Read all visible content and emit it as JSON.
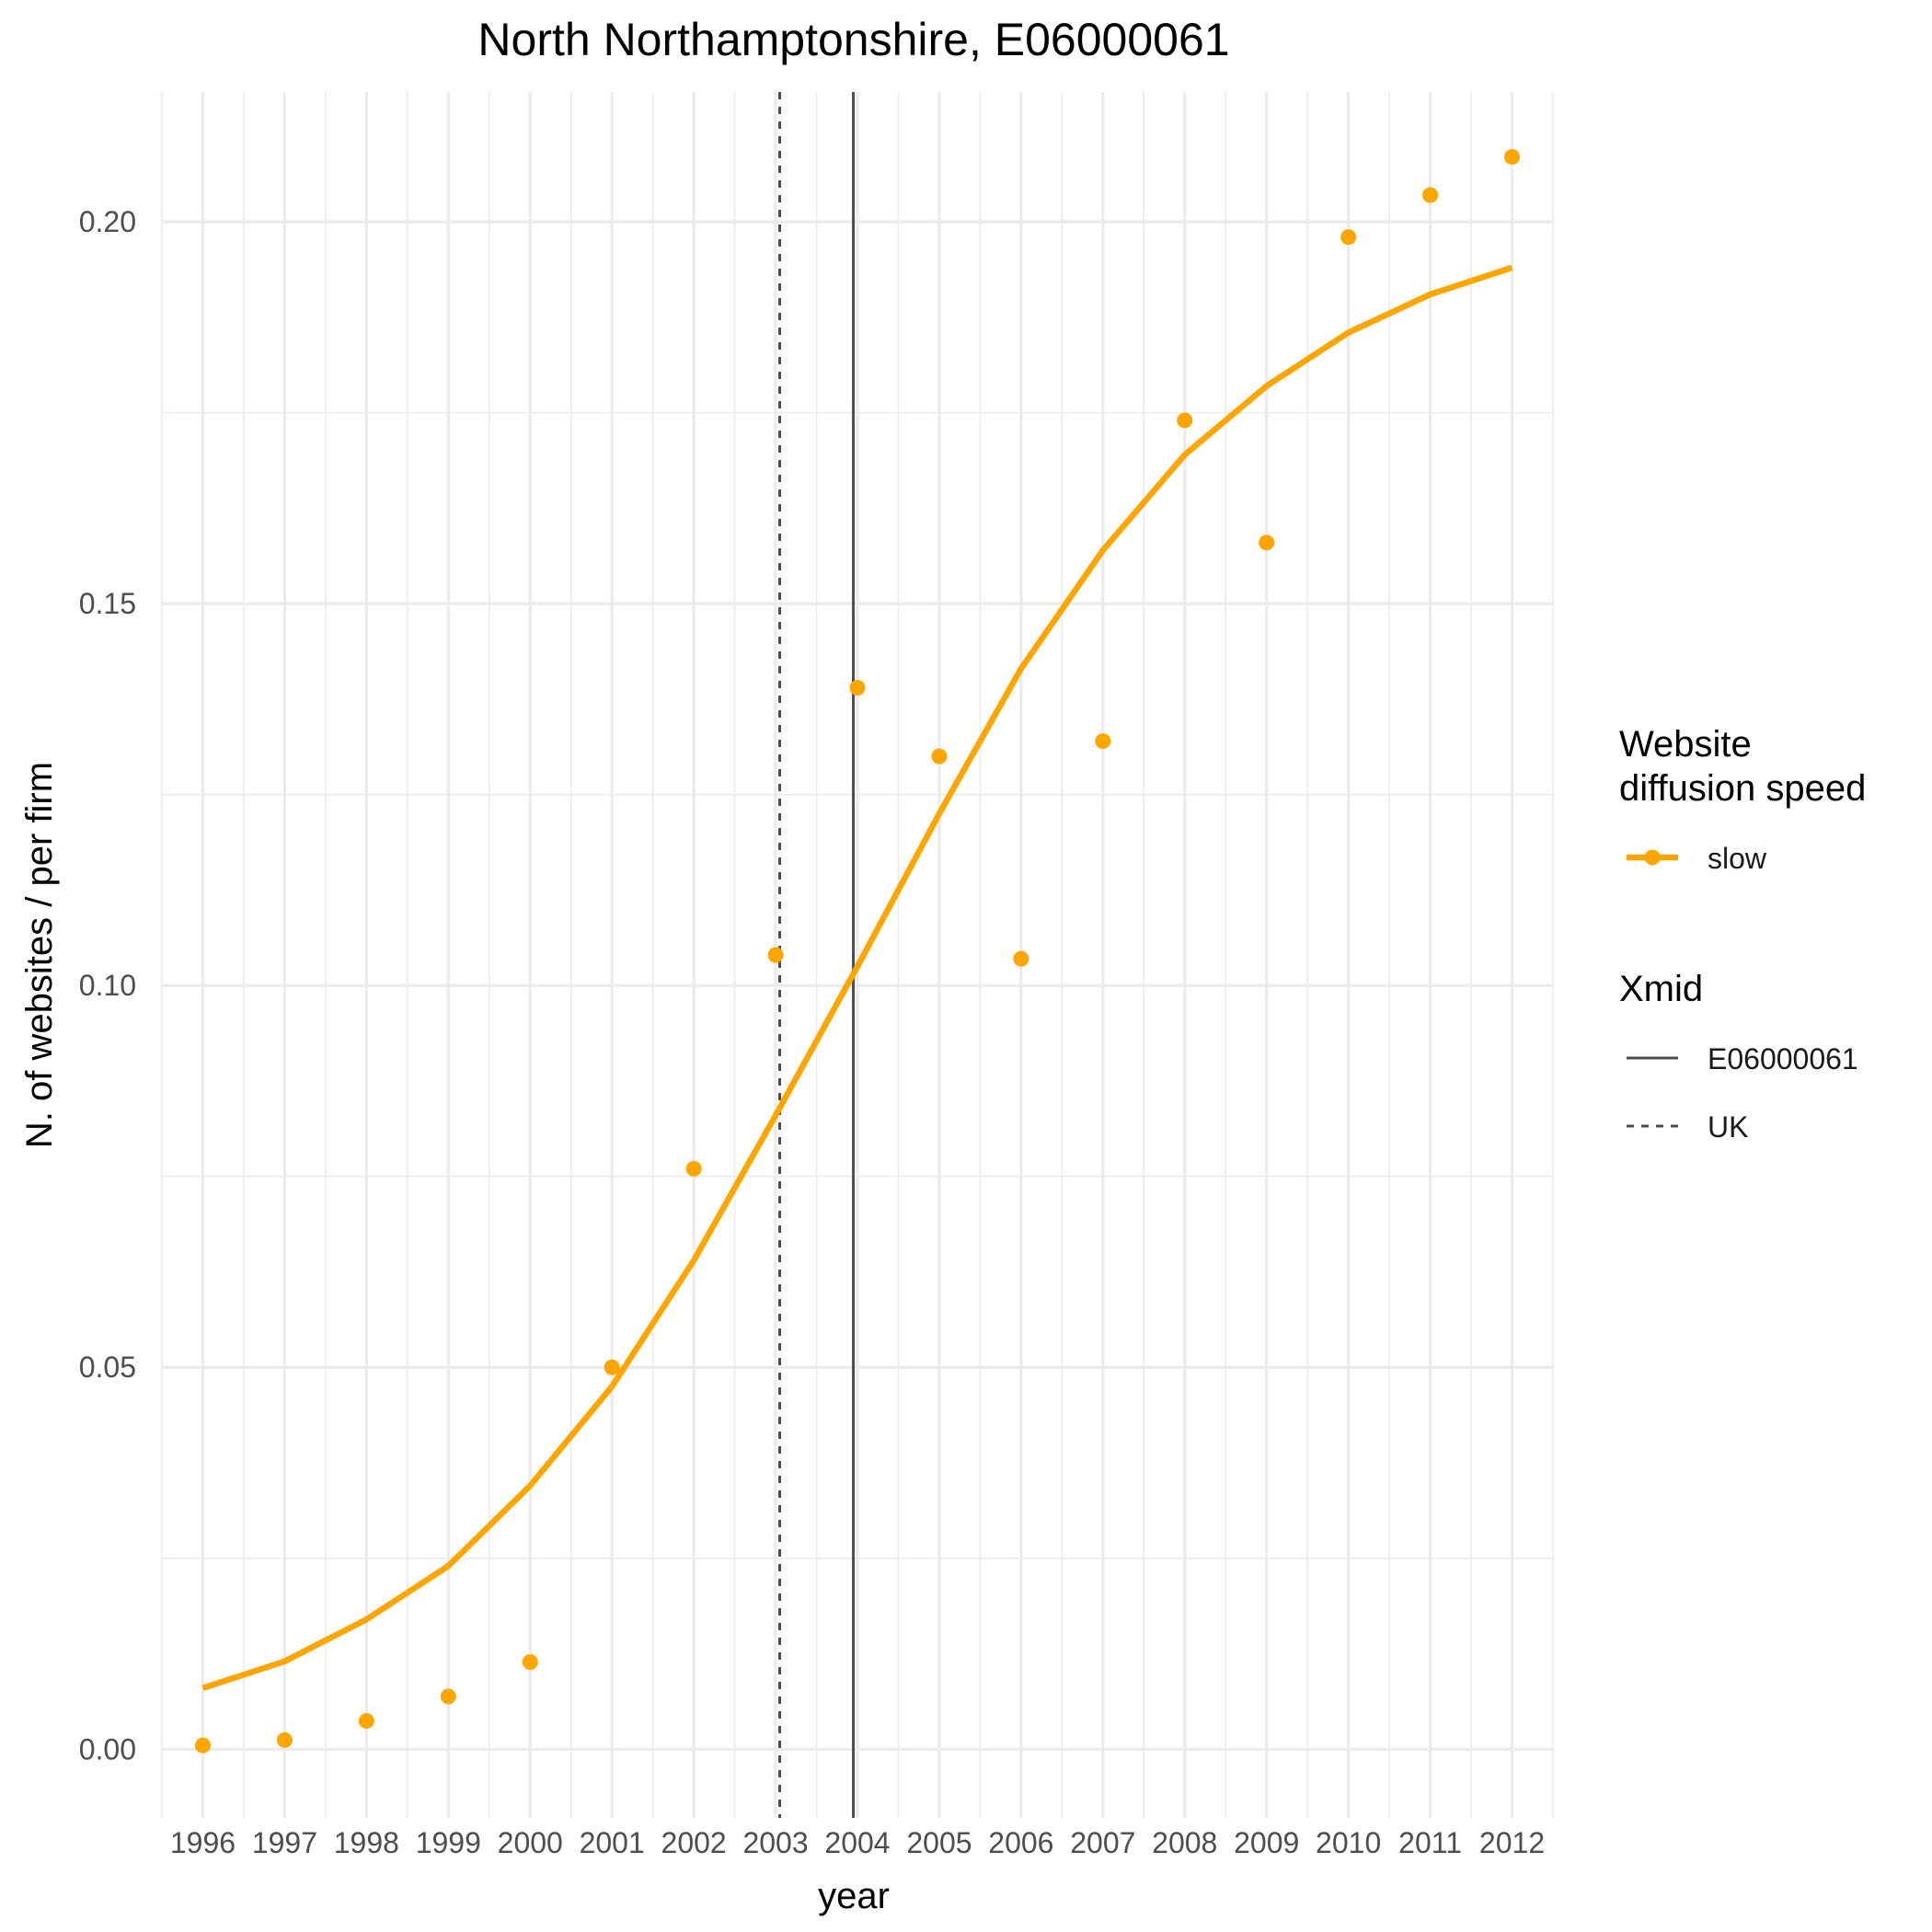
{
  "chart_data": {
    "type": "line",
    "title": "North Northamptonshire, E06000061",
    "xlabel": "year",
    "ylabel": "N. of websites / per firm",
    "x": [
      1996,
      1997,
      1998,
      1999,
      2000,
      2001,
      2002,
      2003,
      2004,
      2005,
      2006,
      2007,
      2008,
      2009,
      2010,
      2011,
      2012
    ],
    "xlim": [
      1995.5,
      2012.5
    ],
    "ylim": [
      -0.009,
      0.217
    ],
    "y_ticks": [
      0.0,
      0.05,
      0.1,
      0.15,
      0.2
    ],
    "y_tick_labels": [
      "0.00",
      "0.05",
      "0.10",
      "0.15",
      "0.20"
    ],
    "grid": true,
    "legend_position": "right",
    "colors": {
      "slow": "#FFA500",
      "xmid_line": "#4d4d4d",
      "grid": "#ebebeb"
    },
    "series": [
      {
        "name": "slow",
        "points": [
          0.0005,
          0.0012,
          0.0037,
          0.0069,
          0.0114,
          0.05,
          0.076,
          0.104,
          0.139,
          0.13,
          0.1035,
          0.132,
          0.174,
          0.158,
          0.198,
          0.2035,
          0.2085
        ],
        "fitted": [
          0.008,
          0.0115,
          0.017,
          0.024,
          0.0345,
          0.0475,
          0.064,
          0.083,
          0.1025,
          0.1225,
          0.1415,
          0.157,
          0.1695,
          0.1785,
          0.1855,
          0.1905,
          0.194
        ]
      }
    ],
    "reference_lines": [
      {
        "name": "E06000061",
        "x": 2003.95,
        "style": "solid"
      },
      {
        "name": "UK",
        "x": 2003.05,
        "style": "dashed"
      }
    ],
    "legends": [
      {
        "title_lines": [
          "Website",
          "diffusion speed"
        ],
        "entries": [
          {
            "label": "slow",
            "key": "line-point"
          }
        ]
      },
      {
        "title_lines": [
          "Xmid"
        ],
        "entries": [
          {
            "label": "E06000061",
            "key": "solid"
          },
          {
            "label": "UK",
            "key": "dashed"
          }
        ]
      }
    ]
  }
}
